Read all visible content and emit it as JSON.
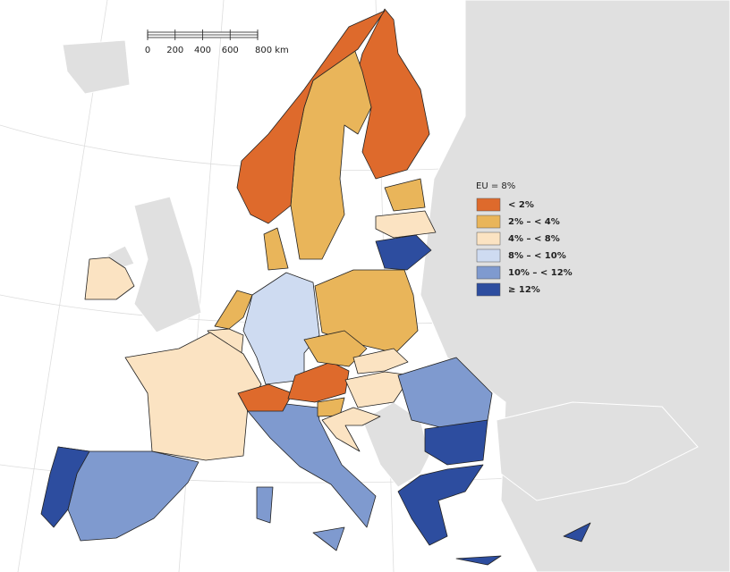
{
  "legend": {
    "title": "EU = 8%",
    "classes": [
      {
        "label": "< 2%",
        "color": "#de6a2c"
      },
      {
        "label": "2% – < 4%",
        "color": "#e9b55a"
      },
      {
        "label": "4% – < 8%",
        "color": "#fbe3c2"
      },
      {
        "label": "8% – < 10%",
        "color": "#cedbf1"
      },
      {
        "label": "10% – < 12%",
        "color": "#7f9acf"
      },
      {
        "label": "≥ 12%",
        "color": "#2d4d9f"
      }
    ]
  },
  "scale_bar": {
    "labels": [
      "0",
      "200",
      "400",
      "600",
      "800 km"
    ]
  }
}
